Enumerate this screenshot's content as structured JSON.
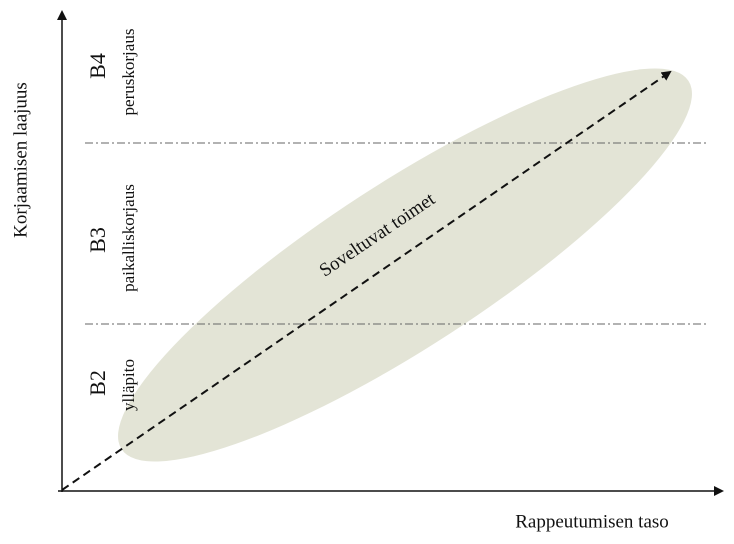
{
  "axes": {
    "y_label": "Korjaamisen laajuus",
    "x_label": "Rappeutumisen taso"
  },
  "zones": [
    {
      "code": "B4",
      "label": "peruskorjaus"
    },
    {
      "code": "B3",
      "label": "paikalliskorjaus"
    },
    {
      "code": "B2",
      "label": "ylläpito"
    }
  ],
  "annotation": "Soveltuvat toimet"
}
